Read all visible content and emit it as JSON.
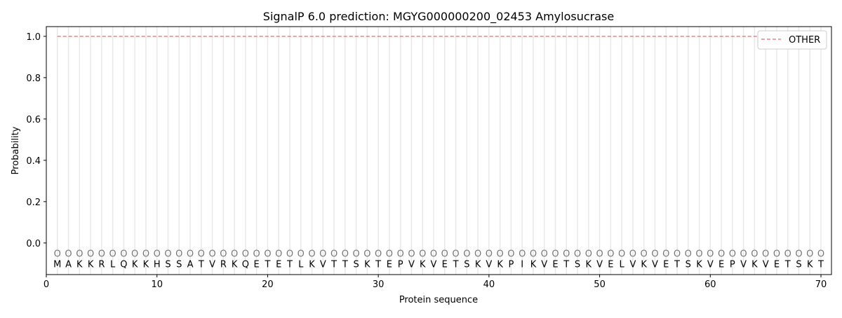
{
  "chart_data": {
    "type": "line",
    "title": "SignalP 6.0 prediction: MGYG000000200_02453 Amylosucrase",
    "xlabel": "Protein sequence",
    "ylabel": "Probability",
    "xlim": [
      0,
      70.95
    ],
    "ylim": [
      -0.153,
      1.047
    ],
    "xticks": [
      0,
      10,
      20,
      30,
      40,
      50,
      60,
      70
    ],
    "yticks": [
      0.0,
      0.2,
      0.4,
      0.6,
      0.8,
      1.0
    ],
    "ytick_labels": [
      "0.0",
      "0.2",
      "0.4",
      "0.6",
      "0.8",
      "1.0"
    ],
    "grid": "vertical lines at each residue",
    "legend_position": "top-right",
    "sequence": [
      "M",
      "A",
      "K",
      "K",
      "R",
      "L",
      "Q",
      "K",
      "K",
      "H",
      "S",
      "S",
      "A",
      "T",
      "V",
      "R",
      "K",
      "Q",
      "E",
      "T",
      "E",
      "T",
      "L",
      "K",
      "V",
      "T",
      "T",
      "S",
      "K",
      "T",
      "E",
      "P",
      "V",
      "K",
      "V",
      "E",
      "T",
      "S",
      "K",
      "V",
      "K",
      "P",
      "I",
      "K",
      "V",
      "E",
      "T",
      "S",
      "K",
      "V",
      "E",
      "L",
      "V",
      "K",
      "V",
      "E",
      "T",
      "S",
      "K",
      "V",
      "E",
      "P",
      "V",
      "K",
      "V",
      "E",
      "T",
      "S",
      "K",
      "T"
    ],
    "predicted_labels": "O",
    "series": [
      {
        "name": "OTHER",
        "color": "#f08080",
        "style": "dashed",
        "x_start": 1,
        "x_end": 70,
        "value": 1.0
      }
    ]
  }
}
